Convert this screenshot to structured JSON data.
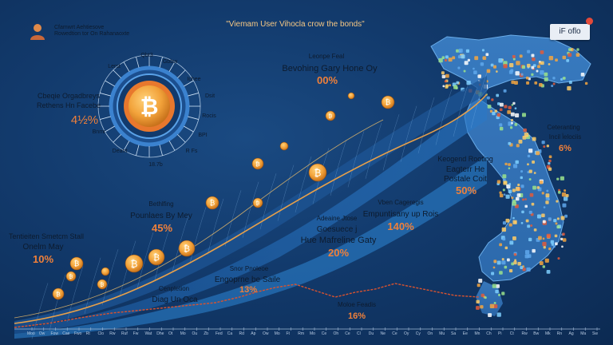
{
  "header": {
    "title": "\"Viemam User Vihocla crow the bonds\"",
    "caption_line1": "Cfamwrt Aehtiesove",
    "caption_line2": "Rowedtion tor On Rahanaoxte"
  },
  "badge": {
    "label": "iF oflo"
  },
  "coin_wheel": {
    "tick_labels": [
      "Lerst",
      "Qbt3",
      "Gbbw",
      "Ichee",
      "Dsit",
      "Rocis",
      "Bnmr",
      "Deant",
      "BPI",
      "18.7b",
      "R Fs"
    ],
    "title_line1": "Cbeqie Orgadbreys",
    "title_line2": "Rethens Hn Facebe",
    "percent": "4½%"
  },
  "callouts": [
    {
      "id": "top-center",
      "line1": "Leonpe Feal",
      "line2": "Bevohing Gary Hone Oy",
      "percent": "00%"
    },
    {
      "id": "right-1",
      "line1": "Ceteranting",
      "line2": "Incil l̈elociis",
      "percent": "6%"
    },
    {
      "id": "right-2",
      "line1": "Keogend Rooting",
      "line2": "Eagterr He",
      "line3": "Postale Coit",
      "percent": "50%"
    },
    {
      "id": "mid-right",
      "line1": "Vben Cageregis",
      "line2": "Empuntisany up Rois",
      "percent": "140%"
    },
    {
      "id": "mid",
      "line1": "Adeaine Jtose",
      "line2": "Goesuece j",
      "line3": "Hue Mafreline Gaty",
      "percent": "20%"
    },
    {
      "id": "left-mid",
      "line1": "Bethlfing",
      "line2": "Pounlaes By Mey",
      "percent": "45%"
    },
    {
      "id": "left",
      "line1": "Tentieiten Smetcm Stall",
      "line2": "Onelm May",
      "percent": "10%"
    },
    {
      "id": "bottom-mid",
      "line1": "Snor Pnoleoe",
      "line2": "Engoprne be Saile",
      "percent": "13%"
    },
    {
      "id": "bottom-left",
      "line1": "Cenpletion",
      "line2": "Diag Un Oca",
      "percent": ""
    },
    {
      "id": "bottom-right",
      "line1": "Moloe Feadis",
      "line2": "",
      "percent": "16%"
    }
  ],
  "axis": {
    "months": [
      "Moo",
      "Ow",
      "Fow",
      "Cae",
      "Fwo",
      "Rt",
      "Clo",
      "Rw",
      "Ruf",
      "Fw",
      "Wat",
      "Dhe",
      "Ot",
      "Mo",
      "Ou",
      "Zb",
      "Fed",
      "Ca",
      "Rd",
      "Ap",
      "Ow",
      "Mo",
      "Ft",
      "Rm",
      "Mo",
      "Ce",
      "Oh",
      "Ce",
      "Cl",
      "Du",
      "Ne",
      "Ce",
      "Oy",
      "Cy",
      "On",
      "Mu",
      "Sa",
      "Ee",
      "Mn",
      "Ch",
      "Pi",
      "Ct",
      "Rw",
      "Bw",
      "Mk",
      "Rn",
      "Ag",
      "Ma",
      "Sw"
    ]
  },
  "colors": {
    "background": "#123a6c",
    "accent_orange": "#f0803a",
    "coin_gold": "#f1a53a",
    "trend_line": "#e7a04a",
    "bottom_line": "#d9532f"
  }
}
